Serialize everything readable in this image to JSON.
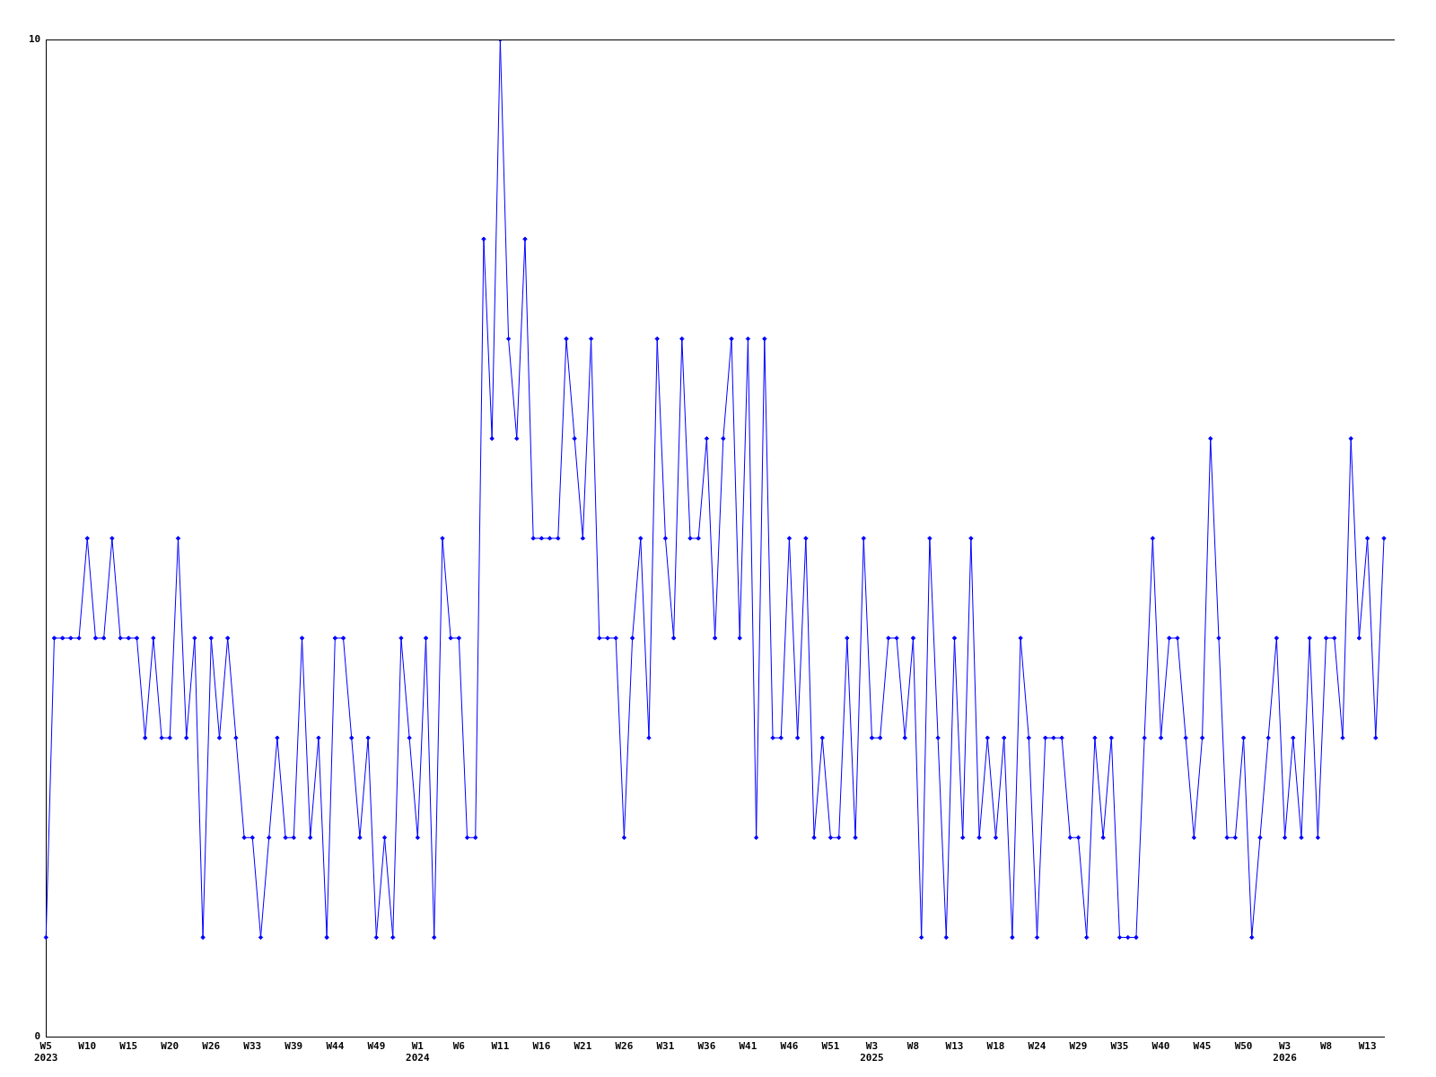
{
  "chart_data": {
    "type": "line",
    "color": "#0000ff",
    "marker": "diamond",
    "line_style": "solid",
    "grid": false,
    "legend": false,
    "ylim": [
      0,
      10
    ],
    "yticks": [
      0,
      10
    ],
    "categories": [
      "W5\n2023",
      null,
      null,
      null,
      null,
      "W10",
      null,
      null,
      null,
      null,
      "W15",
      null,
      null,
      null,
      null,
      "W20",
      null,
      null,
      null,
      null,
      "W26",
      null,
      null,
      null,
      null,
      "W33",
      null,
      null,
      null,
      null,
      "W39",
      null,
      null,
      null,
      null,
      "W44",
      null,
      null,
      null,
      null,
      "W49",
      null,
      null,
      null,
      null,
      "W1\n2024",
      null,
      null,
      null,
      null,
      "W6",
      null,
      null,
      null,
      null,
      "W11",
      null,
      null,
      null,
      null,
      "W16",
      null,
      null,
      null,
      null,
      "W21",
      null,
      null,
      null,
      null,
      "W26",
      null,
      null,
      null,
      null,
      "W31",
      null,
      null,
      null,
      null,
      "W36",
      null,
      null,
      null,
      null,
      "W41",
      null,
      null,
      null,
      null,
      "W46",
      null,
      null,
      null,
      null,
      "W51",
      null,
      null,
      null,
      null,
      "W3\n2025",
      null,
      null,
      null,
      null,
      "W8",
      null,
      null,
      null,
      null,
      "W13",
      null,
      null,
      null,
      null,
      "W18",
      null,
      null,
      null,
      null,
      "W24",
      null,
      null,
      null,
      null,
      "W29",
      null,
      null,
      null,
      null,
      "W35",
      null,
      null,
      null,
      null,
      "W40",
      null,
      null,
      null,
      null,
      "W45",
      null,
      null,
      null,
      null,
      "W50",
      null,
      null,
      null,
      null,
      "W3\n2026",
      null,
      null,
      null,
      null,
      "W8",
      null,
      null,
      null,
      null,
      "W13",
      null,
      null
    ],
    "values": [
      1,
      4,
      4,
      4,
      4,
      5,
      4,
      4,
      5,
      4,
      4,
      4,
      3,
      4,
      3,
      3,
      5,
      3,
      4,
      1,
      4,
      3,
      4,
      3,
      2,
      2,
      1,
      2,
      3,
      2,
      2,
      4,
      2,
      3,
      1,
      4,
      4,
      3,
      2,
      3,
      1,
      2,
      1,
      4,
      3,
      2,
      4,
      1,
      5,
      4,
      4,
      2,
      2,
      8,
      6,
      10,
      7,
      6,
      8,
      5,
      5,
      5,
      5,
      7,
      6,
      5,
      7,
      4,
      4,
      4,
      2,
      4,
      5,
      3,
      7,
      5,
      4,
      7,
      5,
      5,
      6,
      4,
      6,
      7,
      4,
      7,
      2,
      7,
      3,
      3,
      5,
      3,
      5,
      2,
      3,
      2,
      2,
      4,
      2,
      5,
      3,
      3,
      4,
      4,
      3,
      4,
      1,
      5,
      3,
      1,
      4,
      2,
      5,
      2,
      3,
      2,
      3,
      1,
      4,
      3,
      1,
      3,
      3,
      3,
      2,
      2,
      1,
      3,
      2,
      3,
      1,
      1,
      1,
      3,
      5,
      3,
      4,
      4,
      3,
      2,
      3,
      6,
      4,
      2,
      2,
      3,
      1,
      2,
      3,
      4,
      2,
      3,
      2,
      4,
      2,
      4,
      4,
      3,
      6,
      4,
      5,
      3,
      5
    ]
  }
}
